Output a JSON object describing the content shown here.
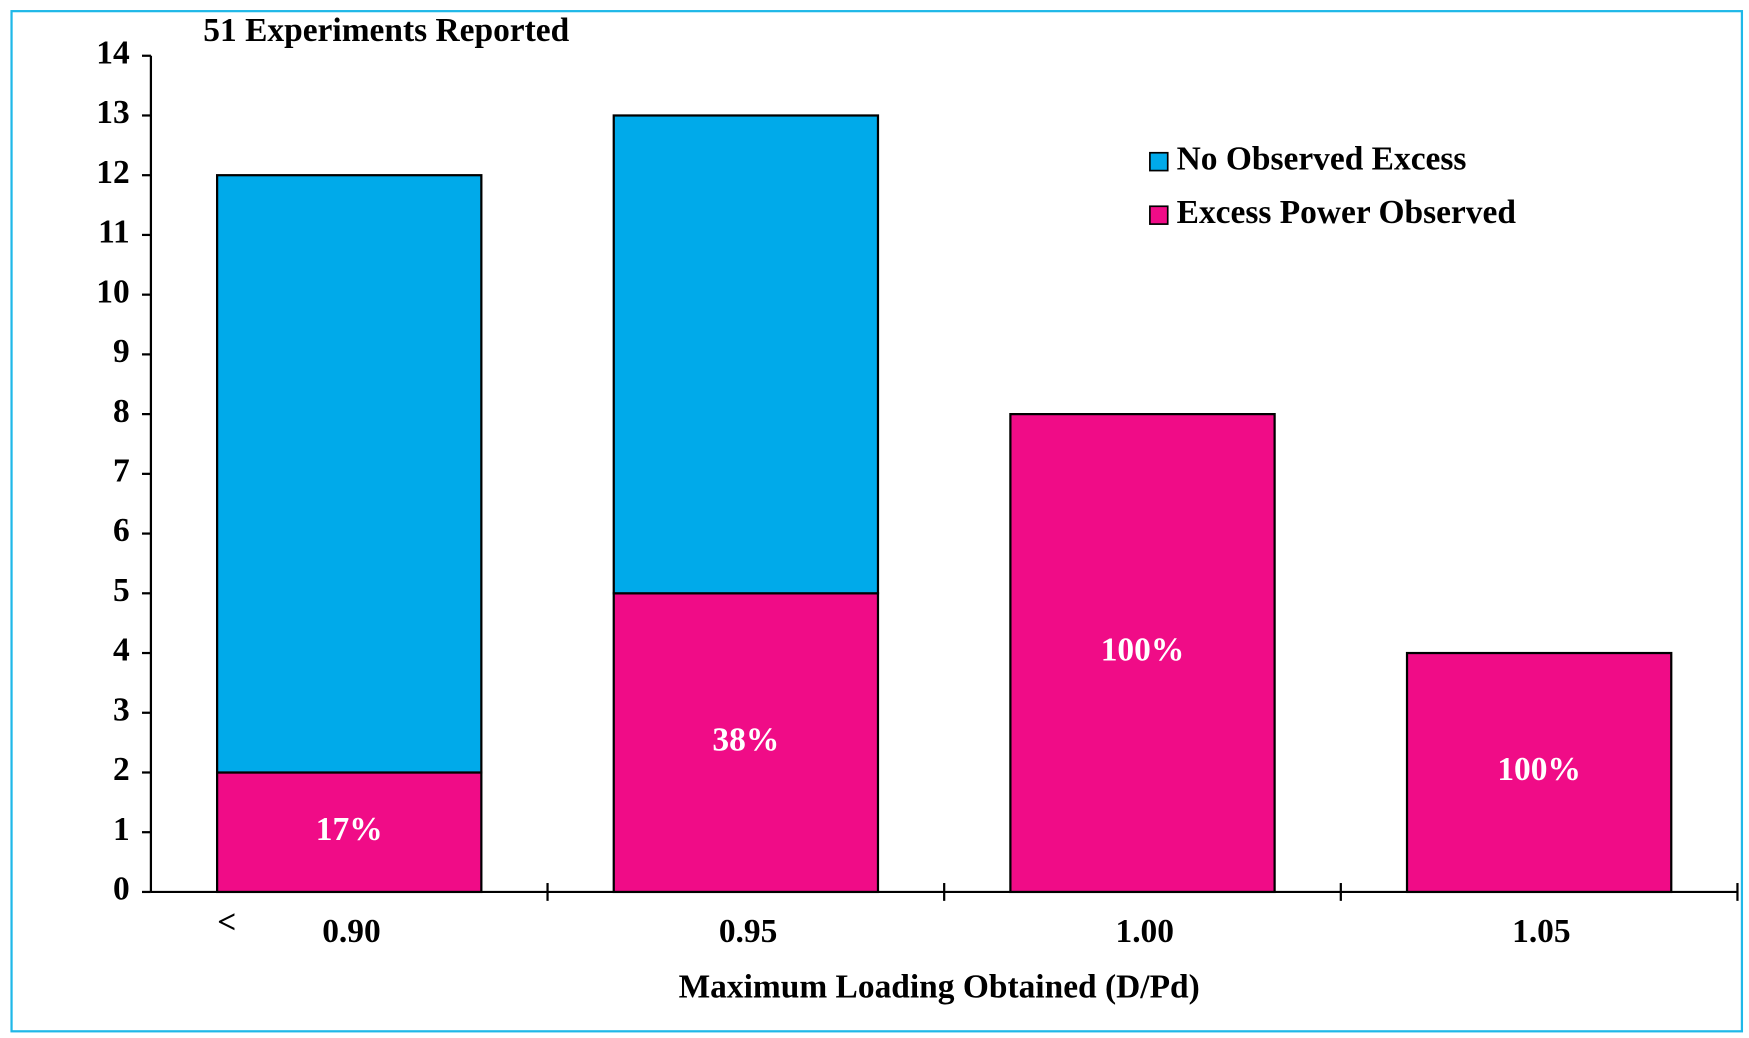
{
  "chart_data": {
    "type": "bar",
    "stacked": true,
    "title": "51 Experiments Reported",
    "x_label": "Maximum Loading Obtained (D/Pd)",
    "categories": [
      "0.90",
      "0.95",
      "1.00",
      "1.05"
    ],
    "category_prefix": "<",
    "series": [
      {
        "name": "Excess Power Observed",
        "color": "#f00c87",
        "values": [
          2,
          5,
          8,
          4
        ]
      },
      {
        "name": "No Observed Excess",
        "color": "#00aaea",
        "values": [
          10,
          8,
          0,
          0
        ]
      }
    ],
    "annotations": [
      "17%",
      "38%",
      "100%",
      "100%"
    ],
    "ylim": [
      0,
      14
    ],
    "yticks": [
      0,
      1,
      2,
      3,
      4,
      5,
      6,
      7,
      8,
      9,
      10,
      11,
      12,
      13,
      14
    ],
    "legend": "upper right"
  }
}
